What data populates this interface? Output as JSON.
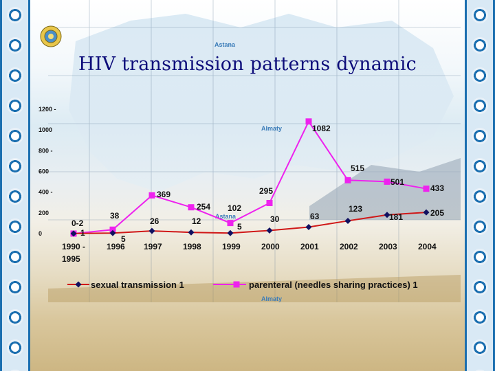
{
  "title": "HIV transmission patterns dynamic",
  "places": {
    "astana_top": "Astana",
    "almaty_mid": "Almaty",
    "astana_mid": "Astana",
    "almaty_bottom": "Almaty"
  },
  "chart_data": {
    "type": "line",
    "title": "HIV transmission patterns dynamic",
    "x": [
      "1990 - 1995",
      "1996",
      "1997",
      "1998",
      "1999",
      "2000",
      "2001",
      "2002",
      "2003",
      "2004"
    ],
    "yticks": [
      "0",
      "200",
      "400",
      "600",
      "800",
      "1000",
      "1200"
    ],
    "ylim": [
      0,
      1200
    ],
    "legend_position": "bottom",
    "series": [
      {
        "name": "sexual transmission 1",
        "color": "#d01818",
        "marker_color": "#101060",
        "marker": "diamond",
        "values": [
          1,
          5,
          26,
          12,
          5,
          30,
          63,
          123,
          181,
          205
        ],
        "labels": [
          "1",
          "5",
          "26",
          "12",
          "5",
          "30",
          "63",
          "123",
          "181",
          "205"
        ]
      },
      {
        "name": "parenteral (needles sharing practices) 1",
        "color": "#ee22ee",
        "marker_color": "#ee22ee",
        "marker": "square",
        "values": [
          0.2,
          38,
          369,
          254,
          102,
          295,
          1082,
          515,
          501,
          433
        ],
        "labels": [
          "0-2",
          "38",
          "369",
          "254",
          "102",
          "295",
          "1082",
          "515",
          "501",
          "433"
        ]
      }
    ]
  }
}
